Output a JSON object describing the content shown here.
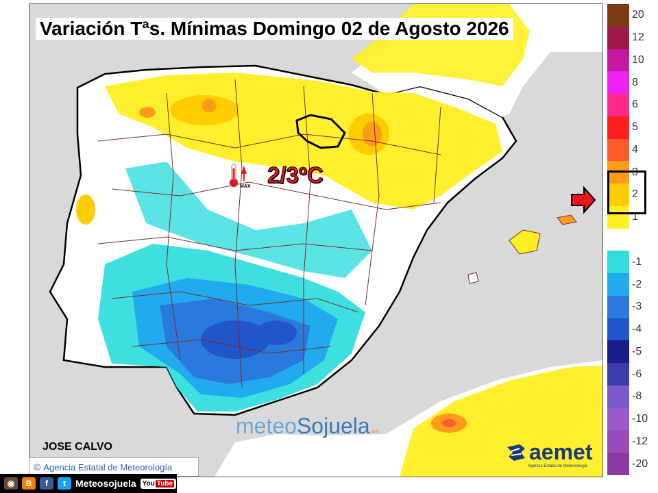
{
  "title": "Variación Tªs. Mínimas Domingo 02 de Agosto 2026",
  "highlight": {
    "value": "2/3ºC",
    "icon": "thermometer-max-icon",
    "icon_label": "MAX"
  },
  "branding": {
    "meteo_prefix": "meteo",
    "meteo_name": "Sojuela",
    "meteo_suffix": ".es"
  },
  "author": "JOSE CALVO",
  "agency": {
    "copyright": "©",
    "name": "Agencia Estatal de Meteorología"
  },
  "aemet": {
    "name": "aemet",
    "subtitle": "Agencia Estatal de Meteorología"
  },
  "social": {
    "label": "Meteosojuela",
    "youtube_you": "You",
    "youtube_tube": "Tube"
  },
  "legend": [
    {
      "label": "20",
      "color": "#7a3a12"
    },
    {
      "label": "12",
      "color": "#9c1a4a"
    },
    {
      "label": "10",
      "color": "#c418a0"
    },
    {
      "label": "8",
      "color": "#ee22ee"
    },
    {
      "label": "6",
      "color": "#ff2a88"
    },
    {
      "label": "5",
      "color": "#ff1e1e"
    },
    {
      "label": "4",
      "color": "#ff5a2a"
    },
    {
      "label": "3",
      "color": "#ff9a1a"
    },
    {
      "label": "2",
      "color": "#ffcc00"
    },
    {
      "label": "1",
      "color": "#ffee22"
    },
    {
      "label": "",
      "color": "#ffffff"
    },
    {
      "label": "-1",
      "color": "#33dddd"
    },
    {
      "label": "-2",
      "color": "#22aaee"
    },
    {
      "label": "-3",
      "color": "#2a7ade"
    },
    {
      "label": "-4",
      "color": "#2255c8"
    },
    {
      "label": "-5",
      "color": "#1a1e8a"
    },
    {
      "label": "-6",
      "color": "#3a3aa8"
    },
    {
      "label": "-8",
      "color": "#7a5acc"
    },
    {
      "label": "-10",
      "color": "#9a5acc"
    },
    {
      "label": "-12",
      "color": "#9a4ab8"
    },
    {
      "label": "-20",
      "color": "#8a3aa0"
    }
  ],
  "highlighted_range": [
    "2",
    "3"
  ],
  "colors": {
    "sea": "#d9d9d9",
    "accent_red": "#e8141a",
    "border_lines": "#7a2a2a"
  }
}
